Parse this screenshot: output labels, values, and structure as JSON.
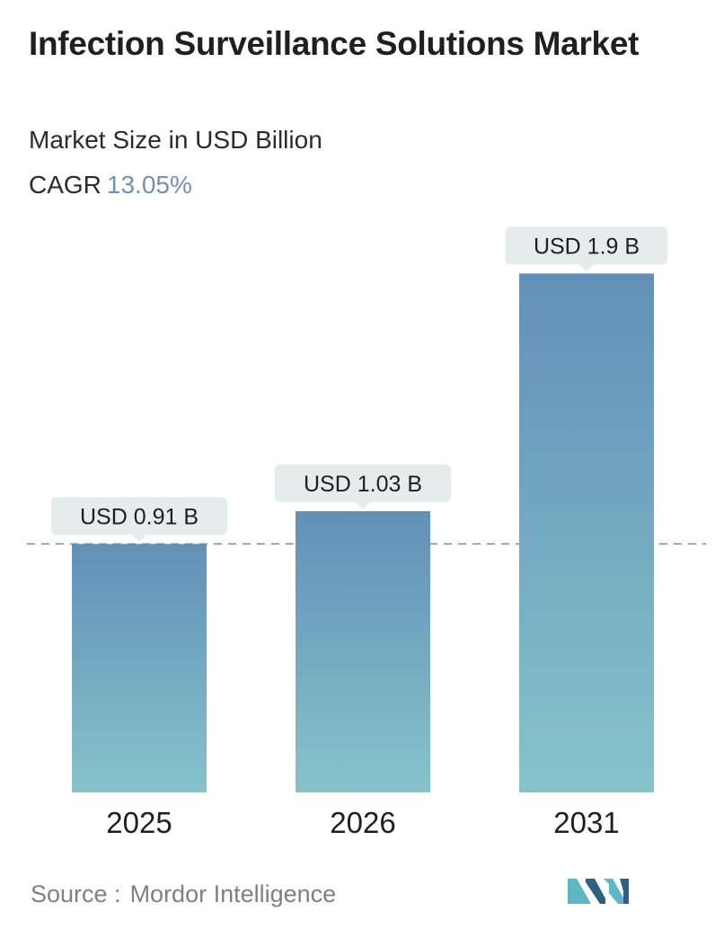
{
  "header": {
    "title": "Infection Surveillance Solutions Market",
    "subtitle": "Market Size in USD Billion",
    "cagr_label": "CAGR",
    "cagr_value": "13.05%"
  },
  "footer": {
    "source_label": "Source :",
    "source_name": "Mordor Intelligence"
  },
  "colors": {
    "bar_top": "#6290b8",
    "bar_bottom": "#86c3cb",
    "label_bg": "#e4ecec",
    "reference_line": "#6f8ea8",
    "logo_dark": "#2f5f83",
    "logo_light": "#5bb8c4"
  },
  "chart_data": {
    "type": "bar",
    "categories": [
      "2025",
      "2026",
      "2031"
    ],
    "values": [
      0.91,
      1.03,
      1.9
    ],
    "data_labels": [
      "USD 0.91 B",
      "USD 1.03 B",
      "USD 1.9 B"
    ],
    "title": "Infection Surveillance Solutions Market",
    "subtitle": "Market Size in USD Billion",
    "unit": "USD Billion",
    "reference_line": 0.91,
    "grid": false,
    "legend": "none"
  }
}
